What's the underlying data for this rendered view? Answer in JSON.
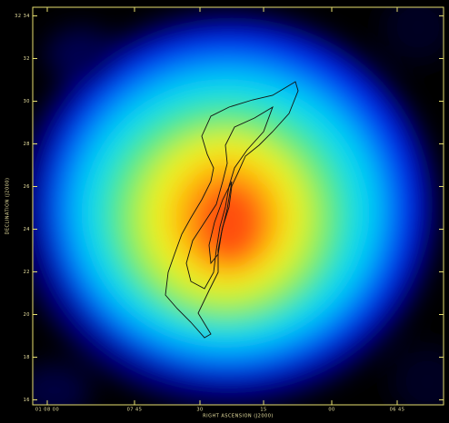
{
  "axes": {
    "x_label": "RIGHT ASCENSION (J2000)",
    "y_label": "DECLINATION (J2000)",
    "x_ticks": [
      "01 08 00",
      "07 45",
      "30",
      "15",
      "00",
      "06 45"
    ],
    "y_ticks": [
      "32 34",
      "32",
      "30",
      "28",
      "26",
      "24",
      "22",
      "20",
      "18",
      "16"
    ]
  }
}
